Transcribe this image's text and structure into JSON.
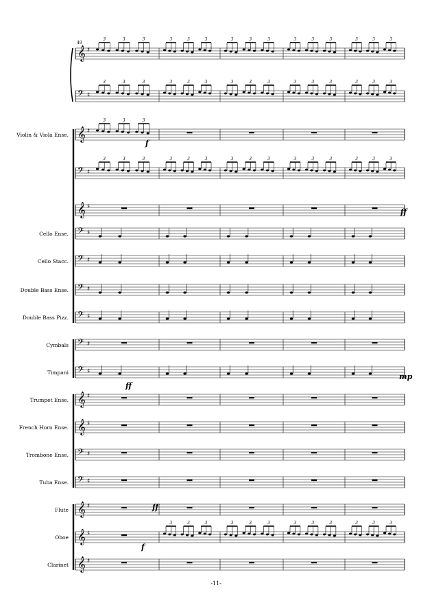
{
  "page_number": "-11-",
  "measure_number": "49",
  "instruments": [
    {
      "id": "piano-rh",
      "label": "",
      "clef": "treble"
    },
    {
      "id": "piano-lh",
      "label": "",
      "clef": "bass"
    },
    {
      "id": "violin-viola-1",
      "label": "Violin & Viola Ense.",
      "clef": "treble"
    },
    {
      "id": "violin-viola-2",
      "label": "",
      "clef": "bass"
    },
    {
      "id": "violin-viola-3",
      "label": "",
      "clef": "treble"
    },
    {
      "id": "cello-ense",
      "label": "Cello Ense.",
      "clef": "bass"
    },
    {
      "id": "cello-stacc",
      "label": "Cello Stacc.",
      "clef": "bass"
    },
    {
      "id": "double-bass-ense",
      "label": "Double Bass Ense.",
      "clef": "bass"
    },
    {
      "id": "double-bass-pizz",
      "label": "Double Bass Pizz.",
      "clef": "bass"
    },
    {
      "id": "cymbals",
      "label": "Cymbals",
      "clef": "bass"
    },
    {
      "id": "timpani",
      "label": "Timpani",
      "clef": "bass"
    },
    {
      "id": "trumpet-ense",
      "label": "Trumpet Ense.",
      "clef": "treble"
    },
    {
      "id": "french-horn-ense",
      "label": "French Horn Ense.",
      "clef": "treble"
    },
    {
      "id": "trombone-ense",
      "label": "Trombone Ense.",
      "clef": "bass"
    },
    {
      "id": "tuba-ense",
      "label": "Tuba Ense.",
      "clef": "bass"
    },
    {
      "id": "flute",
      "label": "Flute",
      "clef": "treble"
    },
    {
      "id": "oboe",
      "label": "Oboe",
      "clef": "treble"
    },
    {
      "id": "clarinet",
      "label": "Clarinet",
      "clef": "treble"
    }
  ],
  "dynamics": {
    "violin_f": "f",
    "violin3_ff": "ff",
    "timpani_ff": "ff",
    "timpani_mp": "mp",
    "flute_ff": "ff",
    "oboe_f": "f"
  },
  "tuplet_mark": "3"
}
